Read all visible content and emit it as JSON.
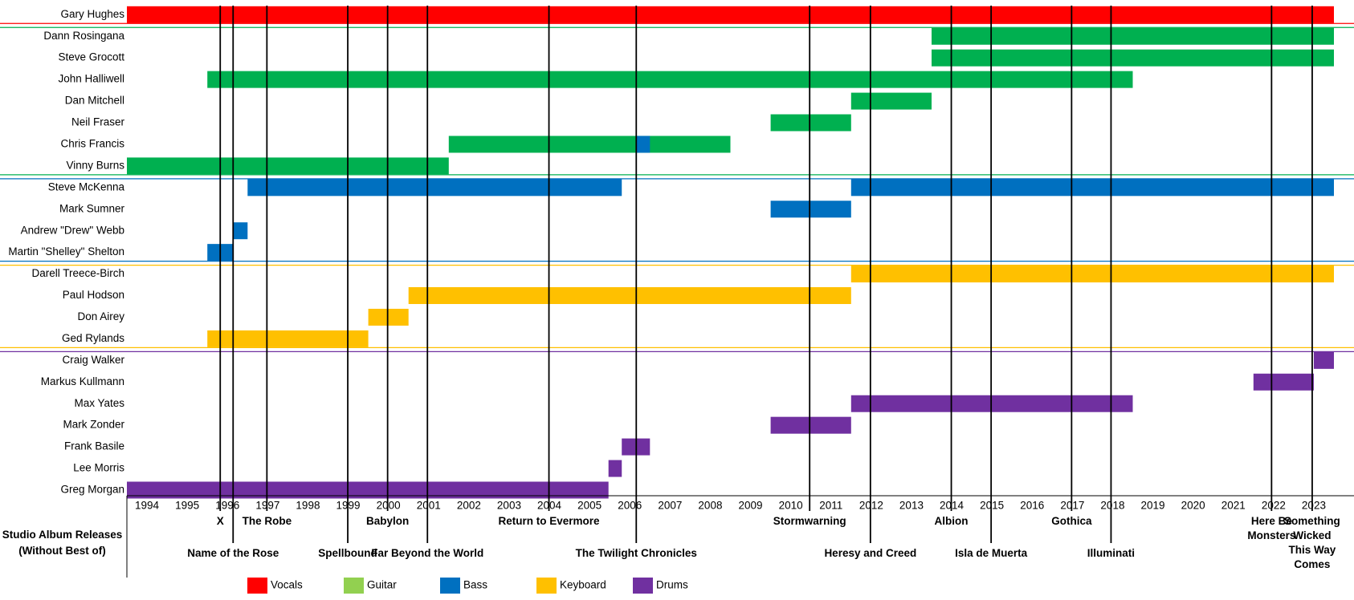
{
  "chart_data": {
    "type": "timeline",
    "xlim": [
      1993.5,
      2023.5
    ],
    "xticks": [
      1994,
      1995,
      1996,
      1997,
      1998,
      1999,
      2000,
      2001,
      2002,
      2003,
      2004,
      2005,
      2006,
      2007,
      2008,
      2009,
      2010,
      2011,
      2012,
      2013,
      2014,
      2015,
      2016,
      2017,
      2018,
      2019,
      2020,
      2021,
      2022,
      2023
    ],
    "roles": [
      {
        "name": "Vocals",
        "color": "#ff0000"
      },
      {
        "name": "Guitar",
        "color": "#92d050"
      },
      {
        "name": "Bass",
        "color": "#0070c0"
      },
      {
        "name": "Keyboard",
        "color": "#ffc000"
      },
      {
        "name": "Drums",
        "color": "#7030a0"
      }
    ],
    "role_colors_on_bars": {
      "Vocals": "#ff0000",
      "Guitar": "#00b050",
      "Bass": "#0070c0",
      "Keyboard": "#ffc000",
      "Drums": "#7030a0"
    },
    "members": [
      {
        "name": "Gary Hughes",
        "bars": [
          {
            "role": "Vocals",
            "start": 1993.5,
            "end": 2023.5
          }
        ]
      },
      {
        "name": "Dann Rosingana",
        "bars": [
          {
            "role": "Guitar",
            "start": 2013.5,
            "end": 2023.5
          }
        ]
      },
      {
        "name": "Steve Grocott",
        "bars": [
          {
            "role": "Guitar",
            "start": 2013.5,
            "end": 2023.5
          }
        ]
      },
      {
        "name": "John Halliwell",
        "bars": [
          {
            "role": "Guitar",
            "start": 1995.5,
            "end": 2018.5
          }
        ]
      },
      {
        "name": "Dan Mitchell",
        "bars": [
          {
            "role": "Guitar",
            "start": 2011.5,
            "end": 2013.5
          }
        ]
      },
      {
        "name": "Neil Fraser",
        "bars": [
          {
            "role": "Guitar",
            "start": 2009.5,
            "end": 2011.5
          }
        ]
      },
      {
        "name": "Chris Francis",
        "bars": [
          {
            "role": "Guitar",
            "start": 2001.5,
            "end": 2008.5
          },
          {
            "role": "Bass",
            "start": 2006.15,
            "end": 2006.5
          }
        ]
      },
      {
        "name": "Vinny Burns",
        "bars": [
          {
            "role": "Guitar",
            "start": 1993.5,
            "end": 2001.5
          }
        ]
      },
      {
        "name": "Steve McKenna",
        "bars": [
          {
            "role": "Bass",
            "start": 1996.5,
            "end": 2005.8
          },
          {
            "role": "Bass",
            "start": 2011.5,
            "end": 2023.5
          }
        ]
      },
      {
        "name": "Mark Sumner",
        "bars": [
          {
            "role": "Bass",
            "start": 2009.5,
            "end": 2011.5
          }
        ]
      },
      {
        "name": "Andrew \"Drew\" Webb",
        "bars": [
          {
            "role": "Bass",
            "start": 1996.14,
            "end": 1996.5
          }
        ]
      },
      {
        "name": "Martin \"Shelley\" Shelton",
        "bars": [
          {
            "role": "Bass",
            "start": 1995.5,
            "end": 1996.14
          }
        ]
      },
      {
        "name": "Darell Treece-Birch",
        "bars": [
          {
            "role": "Keyboard",
            "start": 2011.5,
            "end": 2023.5
          }
        ]
      },
      {
        "name": "Paul Hodson",
        "bars": [
          {
            "role": "Keyboard",
            "start": 2000.5,
            "end": 2011.5
          }
        ]
      },
      {
        "name": "Don Airey",
        "bars": [
          {
            "role": "Keyboard",
            "start": 1999.5,
            "end": 2000.5
          }
        ]
      },
      {
        "name": "Ged Rylands",
        "bars": [
          {
            "role": "Keyboard",
            "start": 1995.5,
            "end": 1999.5
          }
        ]
      },
      {
        "name": "Craig Walker",
        "bars": [
          {
            "role": "Drums",
            "start": 2023.0,
            "end": 2023.5
          }
        ]
      },
      {
        "name": "Markus Kullmann",
        "bars": [
          {
            "role": "Drums",
            "start": 2021.5,
            "end": 2023.0
          }
        ]
      },
      {
        "name": "Max Yates",
        "bars": [
          {
            "role": "Drums",
            "start": 2011.5,
            "end": 2018.5
          }
        ]
      },
      {
        "name": "Mark Zonder",
        "bars": [
          {
            "role": "Drums",
            "start": 2009.5,
            "end": 2011.5
          }
        ]
      },
      {
        "name": "Frank Basile",
        "bars": [
          {
            "role": "Drums",
            "start": 2005.8,
            "end": 2006.5
          }
        ]
      },
      {
        "name": "Lee Morris",
        "bars": [
          {
            "role": "Drums",
            "start": 2005.47,
            "end": 2005.8
          }
        ]
      },
      {
        "name": "Greg Morgan",
        "bars": [
          {
            "role": "Drums",
            "start": 1993.5,
            "end": 2005.47
          }
        ]
      }
    ],
    "albums_title": "Studio Album Releases (Without Best of)",
    "albums": [
      {
        "name": "X",
        "year": 1995.82
      },
      {
        "name": "Name of the Rose",
        "year": 1996.14
      },
      {
        "name": "The Robe",
        "year": 1996.98
      },
      {
        "name": "Spellbound",
        "year": 1998.99
      },
      {
        "name": "Babylon",
        "year": 1999.98
      },
      {
        "name": "Far Beyond the World",
        "year": 2000.97
      },
      {
        "name": "Return to Evermore",
        "year": 2003.99
      },
      {
        "name": "The Twilight Chronicles",
        "year": 2006.16
      },
      {
        "name": "Stormwarning",
        "year": 2010.47
      },
      {
        "name": "Heresy and Creed",
        "year": 2011.98
      },
      {
        "name": "Albion",
        "year": 2013.99
      },
      {
        "name": "Isla de Muerta",
        "year": 2014.98
      },
      {
        "name": "Gothica",
        "year": 2016.98
      },
      {
        "name": "Illuminati",
        "year": 2017.96
      },
      {
        "name": "Here Be Monsters",
        "year": 2021.95
      },
      {
        "name": "Something Wicked This Way Comes",
        "year": 2022.96
      }
    ]
  }
}
